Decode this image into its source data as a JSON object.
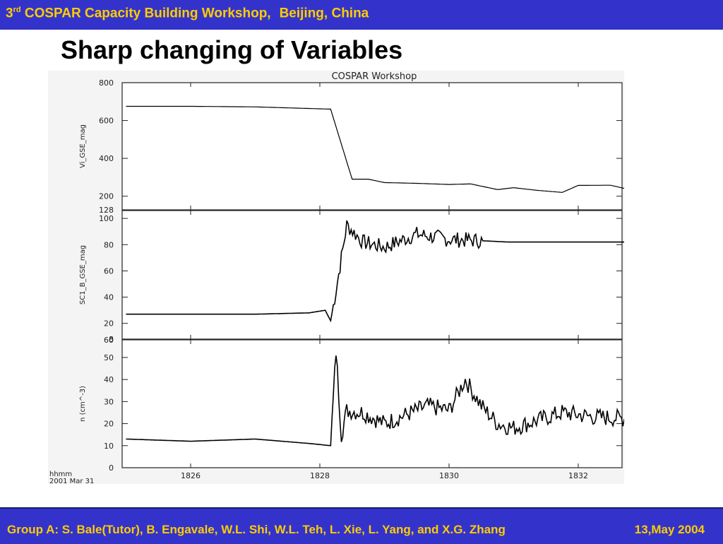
{
  "header": {
    "num": "3",
    "sup": "rd",
    "rest": "COSPAR Capacity Building Workshop,",
    "location": "Beijing, China",
    "bg_color": "#3333cc",
    "text_color": "#ffcc00"
  },
  "slide_title": "Sharp changing of Variables",
  "footer": {
    "authors": "Group A: S. Bale(Tutor), B. Engavale, W.L. Shi, W.L. Teh, L. Xie, L. Yang, and X.G. Zhang",
    "date": "13,May 2004"
  },
  "chart_data": {
    "type": "line",
    "title": "COSPAR Workshop",
    "x_tick_labels": [
      "1826",
      "1828",
      "1830",
      "1832"
    ],
    "x_axis_label": "hhmm",
    "x_axis_date": "2001 Mar 31",
    "xlim_minutes_decimal_hours": [
      18.2,
      18.55
    ],
    "panels": [
      {
        "ylabel": "Vi_GSE_mag",
        "ylim": [
          128,
          800
        ],
        "y_ticks": [
          "800",
          "600",
          "400",
          "200",
          "128"
        ],
        "y_tick_values": [
          800,
          600,
          400,
          200,
          128
        ],
        "series": [
          {
            "x": [
              "18:25:00",
              "18:26:00",
              "18:27:00",
              "18:27:59",
              "18:28:10",
              "18:28:30",
              "18:28:45",
              "18:29:00",
              "18:29:30",
              "18:30:00",
              "18:30:20",
              "18:30:45",
              "18:31:00",
              "18:31:20",
              "18:31:45",
              "18:32:00",
              "18:32:30",
              "18:32:45",
              "18:33:15"
            ],
            "values": [
              675,
              675,
              672,
              662,
              660,
              290,
              290,
              272,
              268,
              262,
              265,
              235,
              245,
              232,
              220,
              257,
              258,
              238,
              245
            ]
          }
        ]
      },
      {
        "ylabel": "SC1_B_GSE_mag",
        "ylim": [
          8,
          106
        ],
        "y_ticks": [
          "100",
          "80",
          "60",
          "40",
          "20",
          "8"
        ],
        "y_tick_values": [
          100,
          80,
          60,
          40,
          20,
          8
        ],
        "series": [
          {
            "x": [
              "18:25:00",
              "18:26:00",
              "18:27:00",
              "18:27:50",
              "18:28:05",
              "18:28:10",
              "18:28:15",
              "18:28:25",
              "18:28:40",
              "18:29:00",
              "18:29:30",
              "18:30:00",
              "18:30:30",
              "18:30:55",
              "18:31:10",
              "18:32:00",
              "18:33:15"
            ],
            "values": [
              27,
              27,
              27,
              28,
              30,
              22,
              45,
              95,
              82,
              78,
              88,
              84,
              83,
              82,
              82,
              82,
              82
            ]
          }
        ]
      },
      {
        "ylabel": "n (cm^-3)",
        "ylim": [
          0,
          58
        ],
        "y_ticks": [
          "60",
          "50",
          "40",
          "30",
          "20",
          "10",
          "0"
        ],
        "y_tick_values": [
          60,
          50,
          40,
          30,
          20,
          10,
          0
        ],
        "series": [
          {
            "x": [
              "18:25:00",
              "18:26:00",
              "18:27:00",
              "18:27:50",
              "18:28:10",
              "18:28:15",
              "18:28:20",
              "18:28:25",
              "18:28:40",
              "18:29:00",
              "18:29:40",
              "18:30:00",
              "18:30:15",
              "18:30:30",
              "18:30:45",
              "18:31:00",
              "18:31:45",
              "18:32:15",
              "18:33:00",
              "18:33:15"
            ],
            "values": [
              13,
              12,
              13,
              11,
              10,
              53,
              15,
              26,
              25,
              20,
              28,
              26,
              40,
              28,
              20,
              18,
              25,
              23,
              22,
              15
            ]
          }
        ]
      }
    ],
    "grid": false,
    "legend": "none"
  }
}
